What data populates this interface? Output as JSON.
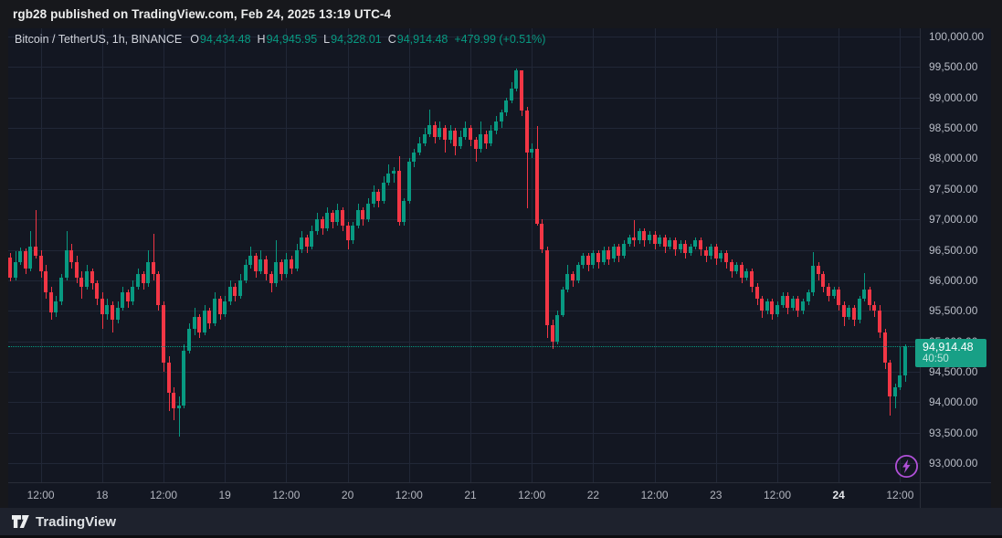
{
  "attribution": {
    "text": "rgb28 published on TradingView.com, Feb 24, 2025 13:19 UTC-4"
  },
  "legend": {
    "symbol": "Bitcoin / TetherUS, 1h, BINANCE",
    "ohlc": [
      {
        "label": "O",
        "value": "94,434.48"
      },
      {
        "label": "H",
        "value": "94,945.95"
      },
      {
        "label": "L",
        "value": "94,328.01"
      },
      {
        "label": "C",
        "value": "94,914.48"
      }
    ],
    "change": "+479.99 (+0.51%)"
  },
  "price_label": {
    "price": "94,914.48",
    "countdown": "40:50"
  },
  "footer": {
    "brand": "TradingView"
  },
  "icons": {
    "boost": "lightning-bolt",
    "logo": "tradingview-mark"
  },
  "colors": {
    "up": "#089981",
    "down": "#f23645",
    "badge": "#18a086",
    "background": "#131722",
    "frame": "#17181c",
    "grid": "#212737",
    "axis_text": "#b2b5be",
    "legend_text": "#d1d4dc",
    "boost_purple": "#b050d8"
  },
  "chart_data": {
    "type": "candlestick",
    "title": "Bitcoin / TetherUS, 1h, BINANCE",
    "interval": "1h",
    "last_price": 94914.48,
    "grid": true,
    "y_axis": {
      "min": 93000,
      "max": 100000,
      "tick_step": 500,
      "ticks": [
        {
          "value": 100000,
          "label": "100,000.00"
        },
        {
          "value": 99500,
          "label": "99,500.00"
        },
        {
          "value": 99000,
          "label": "99,000.00"
        },
        {
          "value": 98500,
          "label": "98,500.00"
        },
        {
          "value": 98000,
          "label": "98,000.00"
        },
        {
          "value": 97500,
          "label": "97,500.00"
        },
        {
          "value": 97000,
          "label": "97,000.00"
        },
        {
          "value": 96500,
          "label": "96,500.00"
        },
        {
          "value": 96000,
          "label": "96,000.00"
        },
        {
          "value": 95500,
          "label": "95,500.00"
        },
        {
          "value": 95000,
          "label": "95,000.00"
        },
        {
          "value": 94500,
          "label": "94,500.00"
        },
        {
          "value": 94000,
          "label": "94,000.00"
        },
        {
          "value": 93500,
          "label": "93,500.00"
        },
        {
          "value": 93000,
          "label": "93,000.00"
        }
      ]
    },
    "x_axis": {
      "ticks": [
        {
          "label": "12:00",
          "index": 6
        },
        {
          "label": "18",
          "index": 18
        },
        {
          "label": "12:00",
          "index": 30
        },
        {
          "label": "19",
          "index": 42
        },
        {
          "label": "12:00",
          "index": 54
        },
        {
          "label": "20",
          "index": 66
        },
        {
          "label": "12:00",
          "index": 78
        },
        {
          "label": "21",
          "index": 90
        },
        {
          "label": "12:00",
          "index": 102
        },
        {
          "label": "22",
          "index": 114
        },
        {
          "label": "12:00",
          "index": 126
        },
        {
          "label": "23",
          "index": 138
        },
        {
          "label": "12:00",
          "index": 150
        },
        {
          "label": "24",
          "index": 162,
          "bold": true
        },
        {
          "label": "12:00",
          "index": 174
        }
      ]
    },
    "candles": [
      [
        96380,
        96450,
        95980,
        96050
      ],
      [
        96050,
        96480,
        96000,
        96300
      ],
      [
        96300,
        96530,
        96250,
        96480
      ],
      [
        96480,
        96520,
        96100,
        96200
      ],
      [
        96200,
        96800,
        96150,
        96550
      ],
      [
        96550,
        97150,
        96350,
        96400
      ],
      [
        96400,
        96500,
        96050,
        96150
      ],
      [
        96150,
        96250,
        95700,
        95800
      ],
      [
        95800,
        95900,
        95350,
        95480
      ],
      [
        95480,
        95750,
        95400,
        95650
      ],
      [
        95650,
        96100,
        95600,
        96050
      ],
      [
        96050,
        96800,
        96000,
        96500
      ],
      [
        96500,
        96600,
        96200,
        96300
      ],
      [
        96300,
        96400,
        95950,
        96050
      ],
      [
        96050,
        96150,
        95700,
        95900
      ],
      [
        95900,
        96250,
        95850,
        96150
      ],
      [
        96150,
        96200,
        95850,
        95950
      ],
      [
        95950,
        96000,
        95600,
        95700
      ],
      [
        95700,
        95800,
        95200,
        95450
      ],
      [
        95450,
        95700,
        95350,
        95600
      ],
      [
        95600,
        95650,
        95150,
        95350
      ],
      [
        95350,
        95650,
        95300,
        95550
      ],
      [
        95550,
        95900,
        95500,
        95800
      ],
      [
        95800,
        95850,
        95550,
        95650
      ],
      [
        95650,
        96000,
        95600,
        95900
      ],
      [
        95900,
        96200,
        95850,
        96100
      ],
      [
        96100,
        96150,
        95850,
        95950
      ],
      [
        95950,
        96500,
        95900,
        96300
      ],
      [
        96300,
        96760,
        96000,
        96100
      ],
      [
        96100,
        96150,
        95500,
        95600
      ],
      [
        95600,
        95650,
        94500,
        94650
      ],
      [
        94650,
        94750,
        93850,
        94150
      ],
      [
        94150,
        94250,
        93700,
        93900
      ],
      [
        93900,
        94100,
        93430,
        93950
      ],
      [
        93950,
        94950,
        93900,
        94850
      ],
      [
        94850,
        95300,
        94800,
        95200
      ],
      [
        95200,
        95550,
        95100,
        95400
      ],
      [
        95400,
        95450,
        95050,
        95150
      ],
      [
        95150,
        95600,
        95100,
        95500
      ],
      [
        95500,
        95550,
        95200,
        95300
      ],
      [
        95300,
        95800,
        95250,
        95700
      ],
      [
        95700,
        95750,
        95350,
        95450
      ],
      [
        95450,
        95750,
        95400,
        95650
      ],
      [
        95650,
        96000,
        95600,
        95900
      ],
      [
        95900,
        95950,
        95650,
        95750
      ],
      [
        95750,
        96100,
        95700,
        96000
      ],
      [
        96000,
        96350,
        95950,
        96250
      ],
      [
        96250,
        96550,
        96200,
        96400
      ],
      [
        96400,
        96450,
        96050,
        96150
      ],
      [
        96150,
        96500,
        96100,
        96350
      ],
      [
        96350,
        96400,
        96000,
        96100
      ],
      [
        96100,
        96150,
        95800,
        95950
      ],
      [
        95950,
        96650,
        95900,
        96300
      ],
      [
        96300,
        96350,
        96000,
        96100
      ],
      [
        96100,
        96450,
        96050,
        96350
      ],
      [
        96350,
        96400,
        96100,
        96200
      ],
      [
        96200,
        96600,
        96150,
        96500
      ],
      [
        96500,
        96800,
        96450,
        96700
      ],
      [
        96700,
        96750,
        96450,
        96550
      ],
      [
        96550,
        96900,
        96500,
        96800
      ],
      [
        96800,
        97100,
        96750,
        97000
      ],
      [
        97000,
        97050,
        96750,
        96850
      ],
      [
        96850,
        97200,
        96800,
        97100
      ],
      [
        97100,
        97150,
        96850,
        96950
      ],
      [
        96950,
        97250,
        96900,
        97150
      ],
      [
        97150,
        97200,
        96800,
        96900
      ],
      [
        96900,
        96950,
        96500,
        96650
      ],
      [
        96650,
        96950,
        96600,
        96900
      ],
      [
        96900,
        97250,
        96850,
        97150
      ],
      [
        97150,
        97200,
        96900,
        97000
      ],
      [
        97000,
        97350,
        96950,
        97250
      ],
      [
        97250,
        97550,
        97200,
        97450
      ],
      [
        97450,
        97500,
        97200,
        97300
      ],
      [
        97300,
        97700,
        97250,
        97600
      ],
      [
        97600,
        97900,
        97550,
        97750
      ],
      [
        97750,
        97850,
        97600,
        97800
      ],
      [
        97800,
        98030,
        96900,
        96950
      ],
      [
        96950,
        97350,
        96900,
        97300
      ],
      [
        97300,
        98000,
        97250,
        97950
      ],
      [
        97950,
        98150,
        97850,
        98100
      ],
      [
        98100,
        98350,
        98050,
        98250
      ],
      [
        98250,
        98500,
        98200,
        98400
      ],
      [
        98400,
        98800,
        98350,
        98550
      ],
      [
        98550,
        98600,
        98250,
        98350
      ],
      [
        98350,
        98600,
        98300,
        98500
      ],
      [
        98500,
        98550,
        98100,
        98300
      ],
      [
        98300,
        98550,
        98250,
        98450
      ],
      [
        98450,
        98500,
        98050,
        98200
      ],
      [
        98200,
        98450,
        98150,
        98350
      ],
      [
        98350,
        98600,
        98300,
        98500
      ],
      [
        98500,
        98550,
        98200,
        98300
      ],
      [
        98300,
        98350,
        97950,
        98150
      ],
      [
        98150,
        98600,
        98100,
        98400
      ],
      [
        98400,
        98450,
        98150,
        98250
      ],
      [
        98250,
        98550,
        98200,
        98450
      ],
      [
        98450,
        98700,
        98400,
        98600
      ],
      [
        98600,
        98800,
        98500,
        98750
      ],
      [
        98750,
        99000,
        98700,
        98950
      ],
      [
        98950,
        99250,
        98900,
        99150
      ],
      [
        99150,
        99475,
        99100,
        99440
      ],
      [
        99440,
        99450,
        98700,
        98780
      ],
      [
        98780,
        98850,
        97180,
        98100
      ],
      [
        98100,
        98250,
        98000,
        98150
      ],
      [
        98150,
        98530,
        96900,
        96930
      ],
      [
        96930,
        97000,
        96450,
        96500
      ],
      [
        96500,
        96550,
        95050,
        95270
      ],
      [
        95270,
        95350,
        94870,
        94990
      ],
      [
        94990,
        95500,
        94950,
        95430
      ],
      [
        95430,
        95900,
        95400,
        95850
      ],
      [
        95850,
        96250,
        95800,
        96100
      ],
      [
        96100,
        96150,
        95900,
        96000
      ],
      [
        96000,
        96300,
        95950,
        96250
      ],
      [
        96250,
        96450,
        96200,
        96400
      ],
      [
        96400,
        96450,
        96150,
        96250
      ],
      [
        96250,
        96500,
        96200,
        96450
      ],
      [
        96450,
        96500,
        96200,
        96300
      ],
      [
        96300,
        96550,
        96250,
        96500
      ],
      [
        96500,
        96550,
        96250,
        96350
      ],
      [
        96350,
        96600,
        96300,
        96550
      ],
      [
        96550,
        96600,
        96300,
        96400
      ],
      [
        96400,
        96650,
        96350,
        96600
      ],
      [
        96600,
        96750,
        96550,
        96700
      ],
      [
        96700,
        96980,
        96550,
        96650
      ],
      [
        96650,
        96850,
        96600,
        96800
      ],
      [
        96800,
        96850,
        96550,
        96650
      ],
      [
        96650,
        96800,
        96600,
        96750
      ],
      [
        96750,
        96800,
        96500,
        96600
      ],
      [
        96600,
        96750,
        96550,
        96700
      ],
      [
        96700,
        96750,
        96450,
        96550
      ],
      [
        96550,
        96700,
        96500,
        96650
      ],
      [
        96650,
        96700,
        96400,
        96500
      ],
      [
        96500,
        96650,
        96450,
        96600
      ],
      [
        96600,
        96650,
        96350,
        96450
      ],
      [
        96450,
        96600,
        96400,
        96550
      ],
      [
        96550,
        96700,
        96500,
        96650
      ],
      [
        96650,
        96700,
        96400,
        96500
      ],
      [
        96500,
        96550,
        96300,
        96400
      ],
      [
        96400,
        96600,
        96350,
        96550
      ],
      [
        96550,
        96600,
        96250,
        96350
      ],
      [
        96350,
        96500,
        96300,
        96450
      ],
      [
        96450,
        96500,
        96200,
        96300
      ],
      [
        96300,
        96350,
        96050,
        96150
      ],
      [
        96150,
        96300,
        96100,
        96250
      ],
      [
        96250,
        96300,
        95950,
        96050
      ],
      [
        96050,
        96200,
        96000,
        96150
      ],
      [
        96150,
        96200,
        95800,
        95900
      ],
      [
        95900,
        95950,
        95600,
        95700
      ],
      [
        95700,
        95750,
        95380,
        95500
      ],
      [
        95500,
        95700,
        95450,
        95650
      ],
      [
        95650,
        95700,
        95350,
        95450
      ],
      [
        95450,
        95650,
        95400,
        95600
      ],
      [
        95600,
        95800,
        95550,
        95750
      ],
      [
        95750,
        95800,
        95450,
        95550
      ],
      [
        95550,
        95750,
        95500,
        95700
      ],
      [
        95700,
        95750,
        95400,
        95500
      ],
      [
        95500,
        95700,
        95450,
        95650
      ],
      [
        95650,
        95850,
        95600,
        95800
      ],
      [
        95800,
        96470,
        95750,
        96240
      ],
      [
        96240,
        96300,
        96000,
        96100
      ],
      [
        96100,
        96150,
        95800,
        95900
      ],
      [
        95900,
        95950,
        95650,
        95750
      ],
      [
        95750,
        95900,
        95700,
        95850
      ],
      [
        95850,
        95900,
        95500,
        95600
      ],
      [
        95600,
        95650,
        95250,
        95400
      ],
      [
        95400,
        95600,
        95350,
        95550
      ],
      [
        95550,
        95600,
        95250,
        95350
      ],
      [
        95350,
        95750,
        95300,
        95700
      ],
      [
        95700,
        96120,
        95650,
        95850
      ],
      [
        95850,
        95900,
        95500,
        95600
      ],
      [
        95600,
        95650,
        95400,
        95500
      ],
      [
        95500,
        95600,
        95050,
        95150
      ],
      [
        95150,
        95200,
        94550,
        94650
      ],
      [
        94650,
        94700,
        93780,
        94100
      ],
      [
        94100,
        94300,
        93900,
        94250
      ],
      [
        94250,
        94900,
        94200,
        94434
      ],
      [
        94434.48,
        94945.95,
        94328.01,
        94914.48
      ]
    ]
  }
}
